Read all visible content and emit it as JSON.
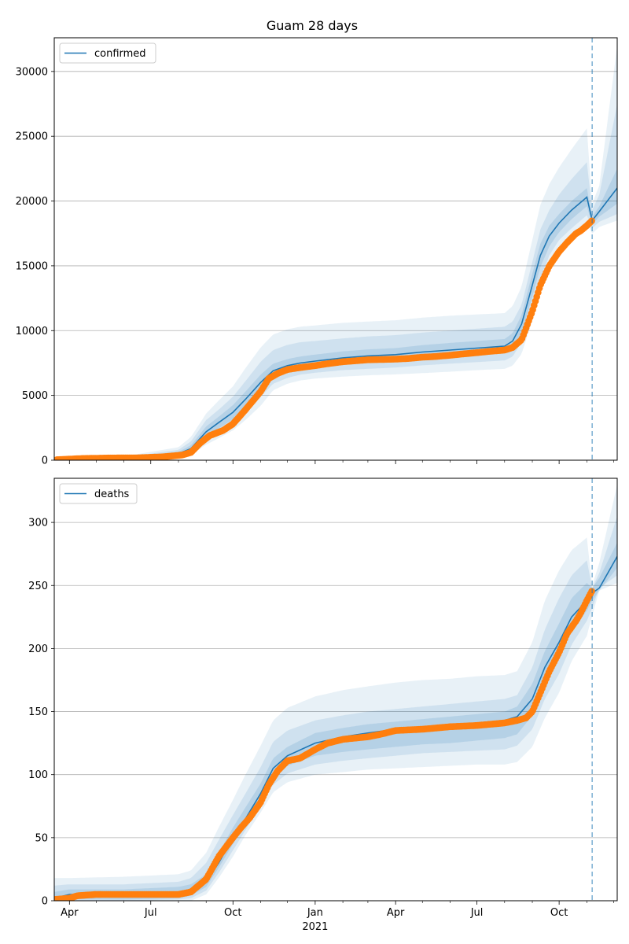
{
  "title": "Guam 28 days",
  "colors": {
    "model": "#1f77b4",
    "observed": "#ff7f0e",
    "grid": "#b0b0b0"
  },
  "forecast_date": "2021-11-07",
  "x_axis": {
    "range": [
      "2020-03-15",
      "2021-12-05"
    ],
    "ticks": [
      {
        "date": "2020-04-01",
        "label": "Apr"
      },
      {
        "date": "2020-07-01",
        "label": "Jul"
      },
      {
        "date": "2020-10-01",
        "label": "Oct"
      },
      {
        "date": "2021-01-01",
        "label": "Jan",
        "sub": "2021"
      },
      {
        "date": "2021-04-01",
        "label": "Apr"
      },
      {
        "date": "2021-07-01",
        "label": "Jul"
      },
      {
        "date": "2021-10-01",
        "label": "Oct"
      }
    ],
    "minor_ticks": [
      "2020-05-01",
      "2020-06-01",
      "2020-08-01",
      "2020-09-01",
      "2020-11-01",
      "2020-12-01",
      "2021-02-01",
      "2021-03-01",
      "2021-05-01",
      "2021-06-01",
      "2021-08-01",
      "2021-09-01",
      "2021-11-01",
      "2021-12-01"
    ]
  },
  "chart_data": [
    {
      "type": "line",
      "legend": "confirmed",
      "legend_position": "top-left",
      "grid": true,
      "ylim": [
        0,
        32600
      ],
      "yticks": [
        0,
        5000,
        10000,
        15000,
        20000,
        25000,
        30000
      ],
      "model": {
        "x": [
          "2020-03-15",
          "2020-06-01",
          "2020-08-01",
          "2020-08-15",
          "2020-09-01",
          "2020-09-15",
          "2020-10-01",
          "2020-10-15",
          "2020-11-01",
          "2020-11-15",
          "2020-12-01",
          "2020-12-15",
          "2021-01-01",
          "2021-02-01",
          "2021-03-01",
          "2021-04-01",
          "2021-05-01",
          "2021-06-01",
          "2021-07-01",
          "2021-08-01",
          "2021-08-10",
          "2021-08-20",
          "2021-09-01",
          "2021-09-10",
          "2021-09-20",
          "2021-10-01",
          "2021-10-15",
          "2021-11-01",
          "2021-11-07",
          "2021-11-15",
          "2021-12-05"
        ],
        "y": [
          70,
          150,
          500,
          900,
          2200,
          2900,
          3700,
          4700,
          6000,
          6900,
          7300,
          7500,
          7650,
          7900,
          8050,
          8150,
          8350,
          8500,
          8650,
          8800,
          9200,
          10500,
          13500,
          15800,
          17300,
          18300,
          19300,
          20300,
          18500,
          19200,
          21000
        ],
        "bands": [
          {
            "opacity": 0.1,
            "lower": [
              0,
              0,
              150,
              400,
              1200,
              1700,
              2300,
              3100,
              4200,
              5400,
              5900,
              6150,
              6300,
              6450,
              6550,
              6620,
              6720,
              6830,
              6950,
              7050,
              7300,
              8200,
              10800,
              12900,
              14800,
              16200,
              17300,
              18300,
              17500,
              18000,
              18500
            ],
            "upper": [
              180,
              300,
              1000,
              1800,
              3600,
              4600,
              5700,
              7100,
              8700,
              9700,
              10100,
              10300,
              10400,
              10600,
              10700,
              10800,
              11000,
              11150,
              11250,
              11350,
              11900,
              13400,
              17000,
              19700,
              21300,
              22600,
              24000,
              25600,
              19800,
              21200,
              32000
            ]
          },
          {
            "opacity": 0.12,
            "lower": [
              20,
              60,
              250,
              550,
              1500,
              2100,
              2750,
              3600,
              4900,
              5900,
              6350,
              6600,
              6750,
              6950,
              7050,
              7150,
              7320,
              7450,
              7570,
              7700,
              8000,
              9100,
              11800,
              14000,
              15800,
              17000,
              17900,
              18900,
              17900,
              18400,
              19000
            ],
            "upper": [
              130,
              230,
              800,
              1450,
              3100,
              3900,
              4900,
              6100,
              7600,
              8500,
              8900,
              9100,
              9200,
              9400,
              9550,
              9650,
              9850,
              10000,
              10150,
              10300,
              10700,
              12000,
              15300,
              17800,
              19300,
              20500,
              21700,
              23000,
              19300,
              20500,
              27500
            ]
          },
          {
            "opacity": 0.15,
            "lower": [
              40,
              100,
              350,
              700,
              1800,
              2450,
              3150,
              4150,
              5400,
              6350,
              6800,
              7000,
              7150,
              7400,
              7550,
              7650,
              7820,
              7950,
              8100,
              8250,
              8600,
              9800,
              12600,
              14900,
              16500,
              17600,
              18600,
              19600,
              18200,
              18800,
              19800
            ],
            "upper": [
              100,
              200,
              650,
              1150,
              2600,
              3350,
              4250,
              5300,
              6600,
              7450,
              7800,
              8000,
              8150,
              8400,
              8550,
              8650,
              8880,
              9050,
              9200,
              9350,
              9800,
              11200,
              14400,
              16700,
              18100,
              19000,
              20000,
              21000,
              18800,
              19600,
              22500
            ]
          }
        ]
      },
      "observed": {
        "x": [
          "2020-03-18",
          "2020-04-15",
          "2020-05-15",
          "2020-06-15",
          "2020-07-15",
          "2020-08-05",
          "2020-08-15",
          "2020-08-25",
          "2020-09-05",
          "2020-09-20",
          "2020-10-01",
          "2020-10-15",
          "2020-11-01",
          "2020-11-10",
          "2020-11-20",
          "2020-12-01",
          "2020-12-15",
          "2021-01-01",
          "2021-01-15",
          "2021-02-01",
          "2021-03-01",
          "2021-04-01",
          "2021-04-15",
          "2021-05-01",
          "2021-05-15",
          "2021-06-01",
          "2021-06-15",
          "2021-07-01",
          "2021-07-15",
          "2021-08-01",
          "2021-08-10",
          "2021-08-20",
          "2021-08-25",
          "2021-09-01",
          "2021-09-10",
          "2021-09-20",
          "2021-10-01",
          "2021-10-10",
          "2021-10-20",
          "2021-10-25",
          "2021-11-01",
          "2021-11-07"
        ],
        "y": [
          40,
          130,
          170,
          180,
          260,
          400,
          600,
          1300,
          1900,
          2300,
          2800,
          3900,
          5300,
          6300,
          6700,
          7000,
          7150,
          7300,
          7450,
          7600,
          7750,
          7800,
          7850,
          7950,
          8000,
          8100,
          8200,
          8300,
          8400,
          8500,
          8700,
          9300,
          10200,
          11500,
          13500,
          15000,
          16100,
          16800,
          17500,
          17700,
          18100,
          18500
        ]
      }
    },
    {
      "type": "line",
      "legend": "deaths",
      "legend_position": "top-left",
      "grid": true,
      "ylim": [
        0,
        335
      ],
      "yticks": [
        0,
        50,
        100,
        150,
        200,
        250,
        300
      ],
      "model": {
        "x": [
          "2020-03-15",
          "2020-04-01",
          "2020-06-01",
          "2020-08-01",
          "2020-08-15",
          "2020-09-01",
          "2020-09-15",
          "2020-10-01",
          "2020-10-15",
          "2020-11-01",
          "2020-11-15",
          "2020-12-01",
          "2021-01-01",
          "2021-02-01",
          "2021-03-01",
          "2021-04-01",
          "2021-05-01",
          "2021-06-01",
          "2021-07-01",
          "2021-08-01",
          "2021-08-15",
          "2021-09-01",
          "2021-09-15",
          "2021-10-01",
          "2021-10-15",
          "2021-11-01",
          "2021-11-07",
          "2021-11-15",
          "2021-12-05"
        ],
        "y": [
          2,
          5,
          5,
          6,
          8,
          15,
          30,
          50,
          65,
          85,
          105,
          115,
          125,
          130,
          133,
          136,
          138,
          139,
          141,
          143,
          146,
          160,
          185,
          205,
          225,
          238,
          244,
          248,
          273
        ],
        "bands": [
          {
            "opacity": 0.1,
            "lower": [
              0,
              0,
              0,
              0,
              0,
              5,
              18,
              35,
              52,
              70,
              86,
              94,
              100,
              102,
              104,
              105,
              106,
              107,
              108,
              108,
              110,
              122,
              145,
              165,
              190,
              210,
              226,
              246,
              252
            ],
            "upper": [
              18,
              18,
              19,
              21,
              24,
              38,
              58,
              80,
              100,
              123,
              143,
              153,
              162,
              167,
              170,
              173,
              175,
              176,
              178,
              179,
              182,
              205,
              238,
              262,
              278,
              288,
              250,
              268,
              330
            ]
          },
          {
            "opacity": 0.12,
            "lower": [
              0,
              0,
              0,
              1,
              2,
              8,
              22,
              40,
              56,
              76,
              92,
              101,
              108,
              111,
              113,
              115,
              117,
              118,
              119,
              120,
              123,
              136,
              160,
              180,
              203,
              222,
              232,
              248,
              258
            ],
            "upper": [
              12,
              13,
              13,
              15,
              18,
              30,
              48,
              68,
              85,
              106,
              126,
              135,
              143,
              147,
              150,
              152,
              154,
              156,
              158,
              160,
              163,
              185,
              215,
              240,
              258,
              270,
              248,
              260,
              305
            ]
          },
          {
            "opacity": 0.15,
            "lower": [
              0,
              1,
              1,
              2,
              4,
              11,
              26,
              45,
              60,
              80,
              98,
              107,
              115,
              118,
              120,
              122,
              124,
              125,
              127,
              129,
              132,
              147,
              172,
              192,
              214,
              230,
              238,
              246,
              264
            ],
            "upper": [
              7,
              9,
              9,
              11,
              13,
              21,
              38,
              58,
              74,
              93,
              113,
              122,
              133,
              137,
              140,
              142,
              144,
              146,
              148,
              150,
              154,
              172,
              198,
              220,
              240,
              252,
              248,
              256,
              284
            ]
          }
        ]
      },
      "observed": {
        "x": [
          "2020-03-15",
          "2020-04-01",
          "2020-04-10",
          "2020-05-01",
          "2020-06-01",
          "2020-07-01",
          "2020-08-01",
          "2020-08-15",
          "2020-09-01",
          "2020-09-15",
          "2020-10-01",
          "2020-10-10",
          "2020-10-20",
          "2020-11-01",
          "2020-11-10",
          "2020-11-20",
          "2020-12-01",
          "2020-12-15",
          "2021-01-01",
          "2021-01-15",
          "2021-02-01",
          "2021-03-01",
          "2021-03-15",
          "2021-04-01",
          "2021-05-01",
          "2021-06-01",
          "2021-07-01",
          "2021-08-01",
          "2021-08-15",
          "2021-08-25",
          "2021-09-01",
          "2021-09-10",
          "2021-09-20",
          "2021-10-01",
          "2021-10-10",
          "2021-10-20",
          "2021-10-25",
          "2021-11-01",
          "2021-11-07"
        ],
        "y": [
          1,
          2,
          4,
          5,
          5,
          5,
          5,
          7,
          17,
          35,
          50,
          58,
          66,
          78,
          92,
          103,
          111,
          113,
          120,
          125,
          128,
          130,
          132,
          135,
          136,
          138,
          139,
          141,
          143,
          145,
          150,
          165,
          182,
          197,
          212,
          222,
          228,
          238,
          246
        ]
      }
    }
  ]
}
